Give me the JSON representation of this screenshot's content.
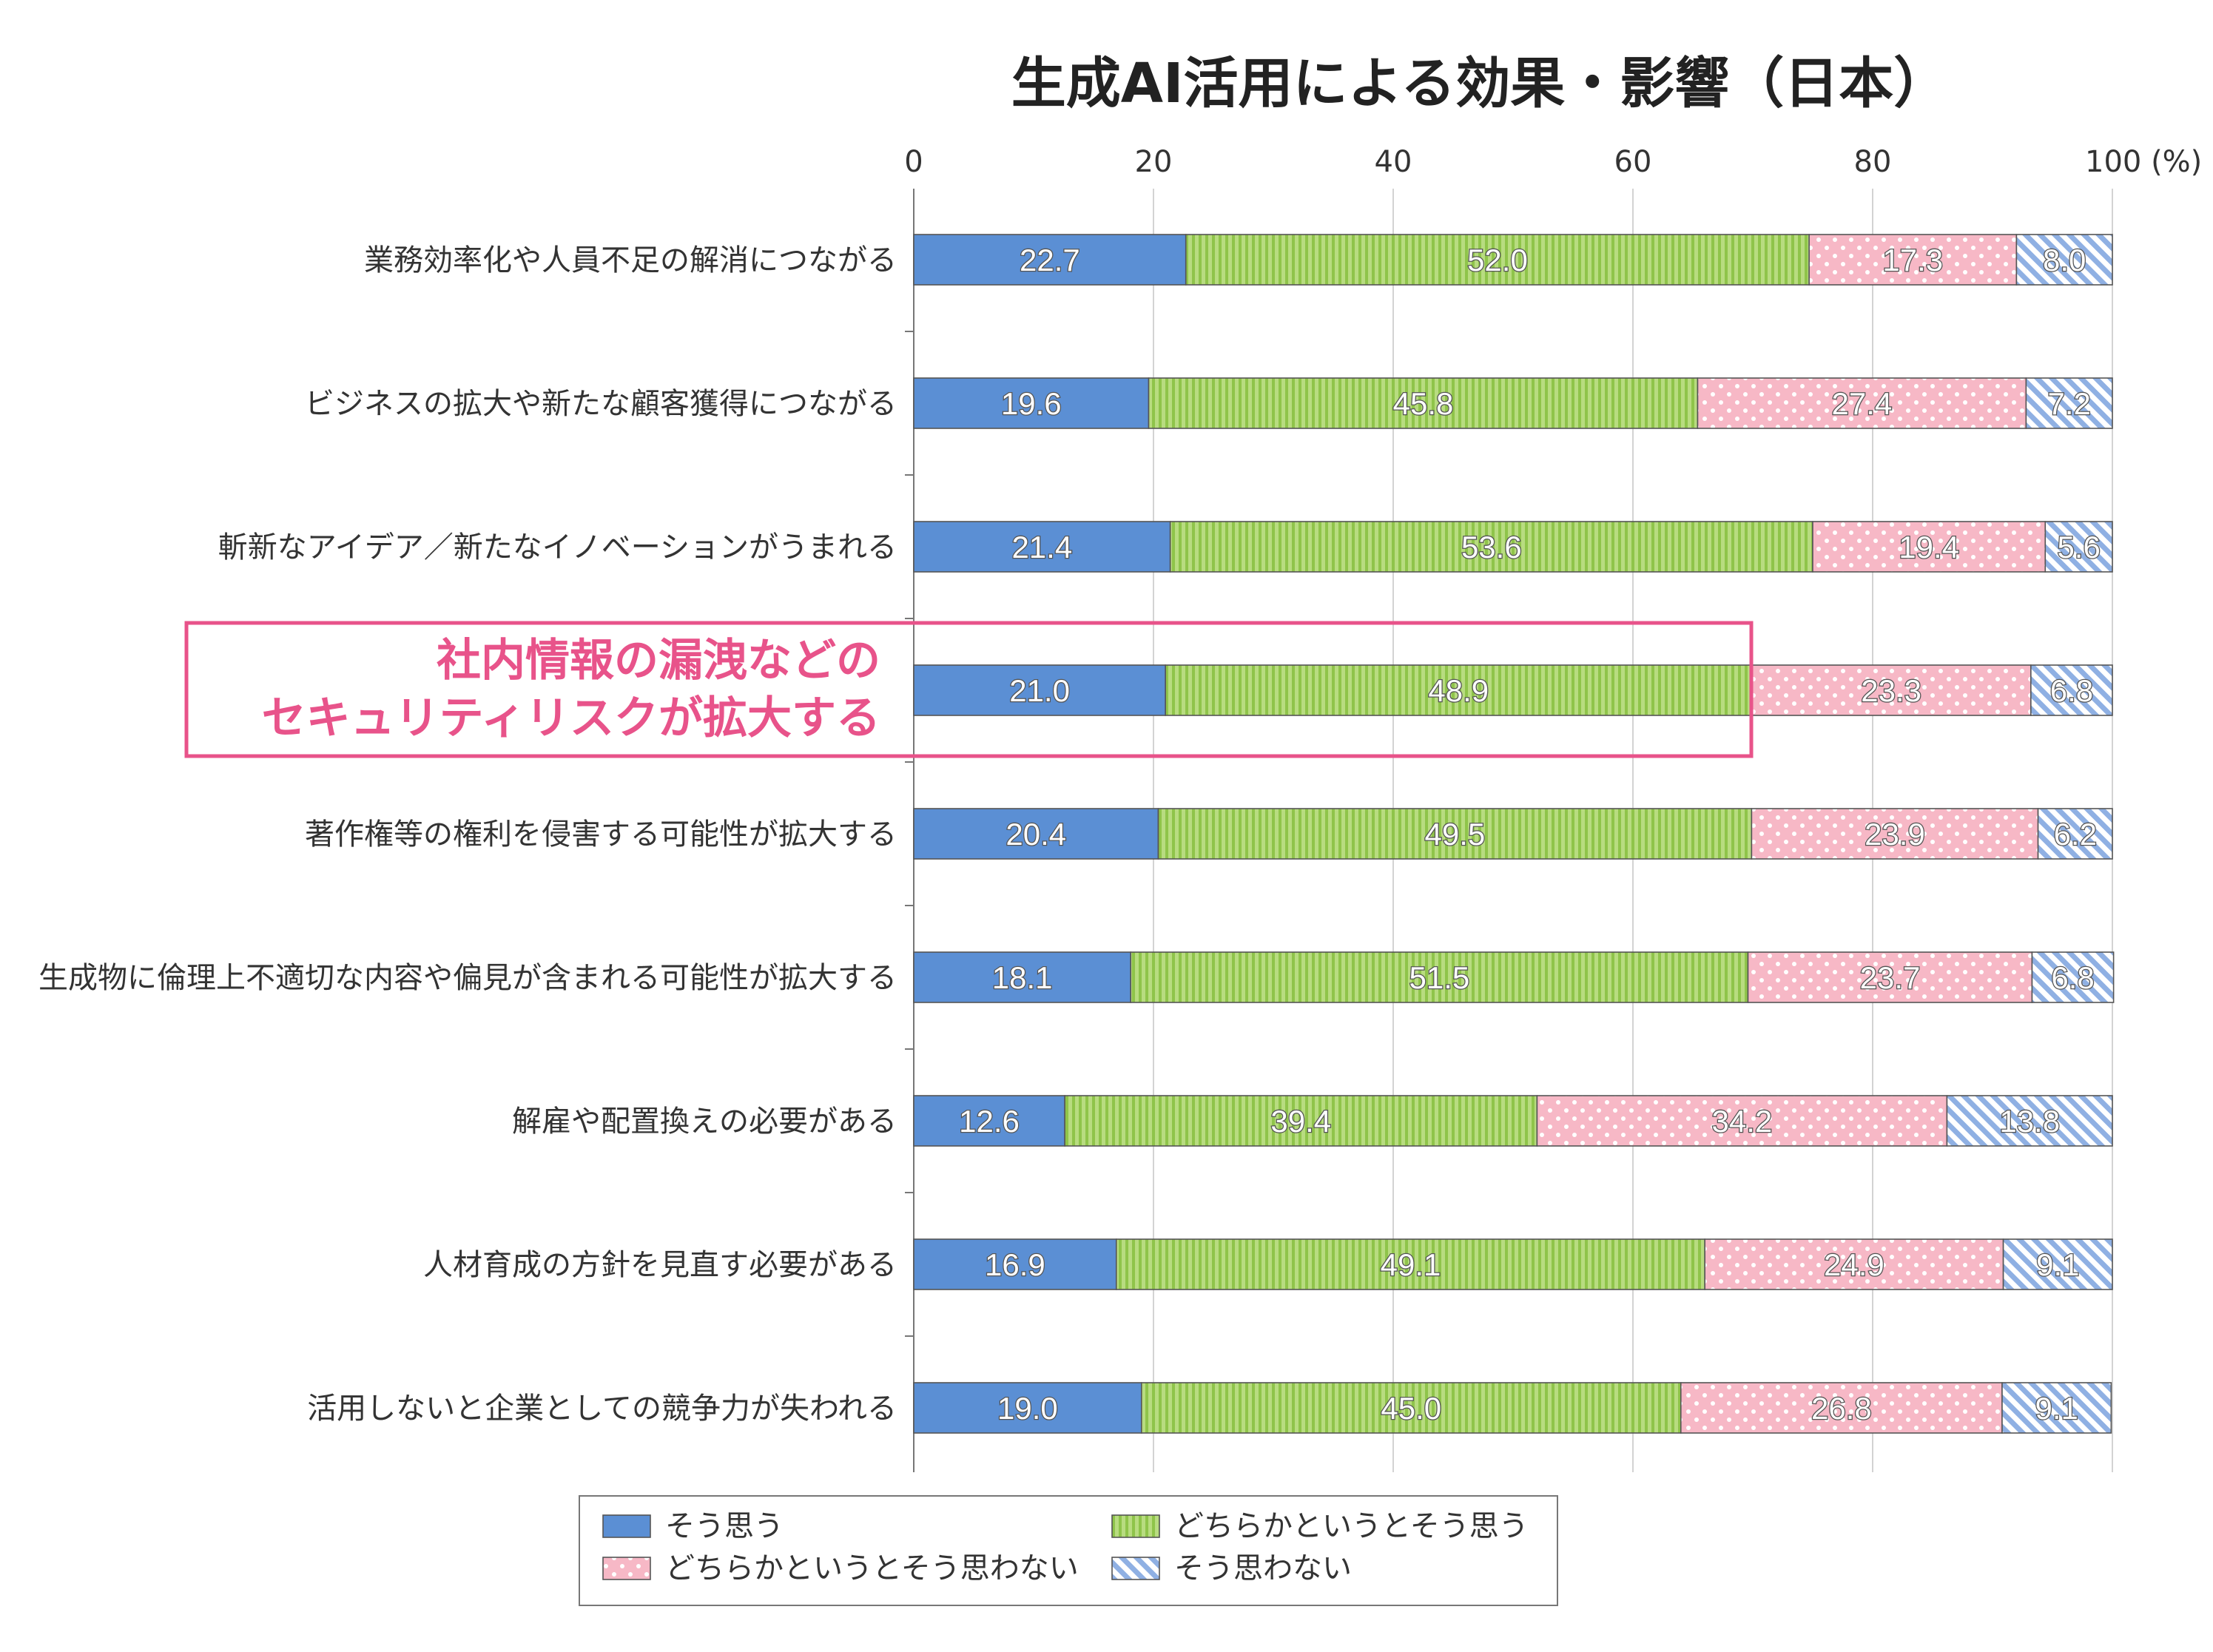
{
  "chart_data": {
    "type": "bar",
    "orientation": "horizontal-stacked",
    "title": "生成AI活用による効果・影響（日本）",
    "axis": {
      "min": 0,
      "max": 100,
      "ticks": [
        0,
        20,
        40,
        60,
        80,
        100
      ],
      "unit": "(%)"
    },
    "categories": [
      [
        "業務効率化や人員不足の解消につながる"
      ],
      [
        "ビジネスの拡大や新たな顧客獲得につながる"
      ],
      [
        "斬新なアイデア／新たなイノベーションがうまれる"
      ],
      [
        "社内情報の漏洩などの",
        "セキュリティリスクが拡大する"
      ],
      [
        "著作権等の権利を侵害する可能性が拡大する"
      ],
      [
        "生成物に倫理上不適切な内容や偏見が含まれる可能性が拡大する"
      ],
      [
        "解雇や配置換えの必要がある"
      ],
      [
        "人材育成の方針を見直す必要がある"
      ],
      [
        "活用しないと企業としての競争力が失われる"
      ]
    ],
    "highlight_index": 3,
    "series": [
      {
        "name": "そう思う",
        "color": "#5b8fd4",
        "pattern": "solid",
        "values": [
          22.7,
          19.6,
          21.4,
          21.0,
          20.4,
          18.1,
          12.6,
          16.9,
          19.0
        ]
      },
      {
        "name": "どちらかというとそう思う",
        "color": "#a9d66a",
        "pattern": "vertical-stripes",
        "values": [
          52.0,
          45.8,
          53.6,
          48.9,
          49.5,
          51.5,
          39.4,
          49.1,
          45.0
        ]
      },
      {
        "name": "どちらかというとそう思わない",
        "color": "#f6b9c6",
        "pattern": "dots",
        "values": [
          17.3,
          27.4,
          19.4,
          23.3,
          23.9,
          23.7,
          34.2,
          24.9,
          26.8
        ]
      },
      {
        "name": "そう思わない",
        "color": "#9cbbe6",
        "pattern": "diagonal-hatch",
        "values": [
          8.0,
          7.2,
          5.6,
          6.8,
          6.2,
          6.8,
          13.8,
          9.1,
          9.1
        ]
      }
    ],
    "legend": {
      "position": "bottom",
      "columns": 2
    }
  }
}
